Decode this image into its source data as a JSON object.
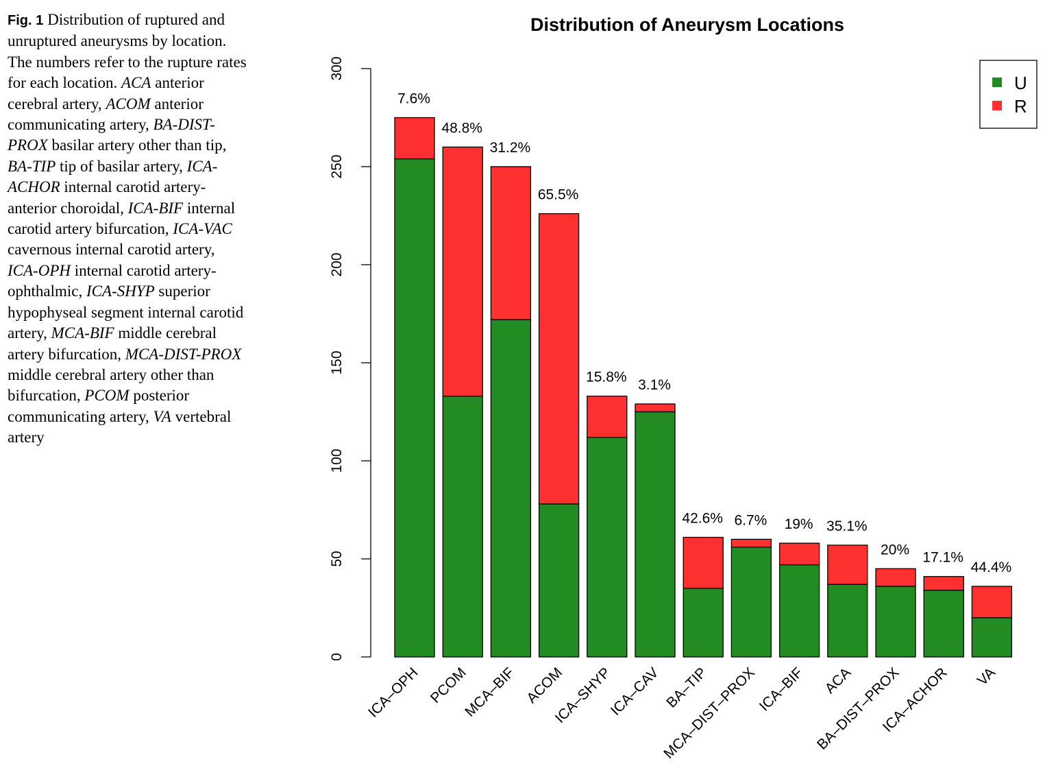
{
  "caption": {
    "label": "Fig. 1",
    "segments": [
      {
        "text": "Distribution of ruptured and unruptured aneurysms by location. The numbers refer to the rupture rates for each location. ",
        "italic": false
      },
      {
        "text": "ACA",
        "italic": true
      },
      {
        "text": " anterior cerebral artery, ",
        "italic": false
      },
      {
        "text": "ACOM",
        "italic": true
      },
      {
        "text": " anterior communicating artery, ",
        "italic": false
      },
      {
        "text": "BA-DIST-PROX",
        "italic": true
      },
      {
        "text": " basilar artery other than tip, ",
        "italic": false
      },
      {
        "text": "BA-TIP",
        "italic": true
      },
      {
        "text": " tip of basilar artery, ",
        "italic": false
      },
      {
        "text": "ICA-ACHOR",
        "italic": true
      },
      {
        "text": " internal carotid artery-anterior choroidal, ",
        "italic": false
      },
      {
        "text": "ICA-BIF",
        "italic": true
      },
      {
        "text": " internal carotid artery bifurcation, ",
        "italic": false
      },
      {
        "text": "ICA-VAC",
        "italic": true
      },
      {
        "text": " cavernous internal carotid artery, ",
        "italic": false
      },
      {
        "text": "ICA-OPH",
        "italic": true
      },
      {
        "text": " internal carotid artery-ophthalmic, ",
        "italic": false
      },
      {
        "text": "ICA-SHYP",
        "italic": true
      },
      {
        "text": " superior hypophyseal segment internal carotid artery, ",
        "italic": false
      },
      {
        "text": "MCA-BIF",
        "italic": true
      },
      {
        "text": " middle cerebral artery bifurcation, ",
        "italic": false
      },
      {
        "text": "MCA-DIST-PROX",
        "italic": true
      },
      {
        "text": " middle cerebral artery other than bifurcation, ",
        "italic": false
      },
      {
        "text": "PCOM",
        "italic": true
      },
      {
        "text": " posterior communicating artery, ",
        "italic": false
      },
      {
        "text": "VA",
        "italic": true
      },
      {
        "text": " vertebral artery",
        "italic": false
      }
    ]
  },
  "chart_data": {
    "type": "bar",
    "stacked": true,
    "title": "Distribution of Aneurysm Locations",
    "xlabel": "",
    "ylabel": "",
    "ylim": [
      0,
      300
    ],
    "yticks": [
      0,
      50,
      100,
      150,
      200,
      250,
      300
    ],
    "categories": [
      "ICA–OPH",
      "PCOM",
      "MCA–BIF",
      "ACOM",
      "ICA–SHYP",
      "ICA–CAV",
      "BA–TIP",
      "MCA–DIST–PROX",
      "ICA–BIF",
      "ACA",
      "BA–DIST–PROX",
      "ICA–ACHOR",
      "VA"
    ],
    "series": [
      {
        "name": "U",
        "color": "#228B22",
        "values": [
          254,
          133,
          172,
          78,
          112,
          125,
          35,
          56,
          47,
          37,
          36,
          34,
          20
        ]
      },
      {
        "name": "R",
        "color": "#FF3030",
        "values": [
          21,
          127,
          78,
          148,
          21,
          4,
          26,
          4,
          11,
          20,
          9,
          7,
          16
        ]
      }
    ],
    "bar_labels": [
      "7.6%",
      "48.8%",
      "31.2%",
      "65.5%",
      "15.8%",
      "3.1%",
      "42.6%",
      "6.7%",
      "19%",
      "35.1%",
      "20%",
      "17.1%",
      "44.4%"
    ],
    "legend": {
      "position": "top-right",
      "entries": [
        "U",
        "R"
      ]
    },
    "grid": false
  }
}
